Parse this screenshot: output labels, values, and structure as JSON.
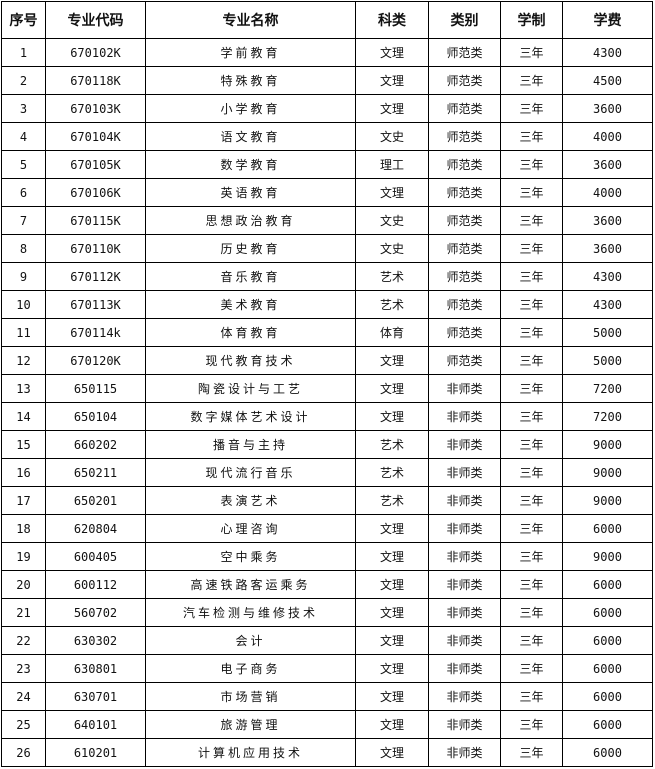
{
  "headers": [
    "序号",
    "专业代码",
    "专业名称",
    "科类",
    "类别",
    "学制",
    "学费"
  ],
  "rows": [
    [
      "1",
      "670102K",
      "学前教育",
      "文理",
      "师范类",
      "三年",
      "4300"
    ],
    [
      "2",
      "670118K",
      "特殊教育",
      "文理",
      "师范类",
      "三年",
      "4500"
    ],
    [
      "3",
      "670103K",
      "小学教育",
      "文理",
      "师范类",
      "三年",
      "3600"
    ],
    [
      "4",
      "670104K",
      "语文教育",
      "文史",
      "师范类",
      "三年",
      "4000"
    ],
    [
      "5",
      "670105K",
      "数学教育",
      "理工",
      "师范类",
      "三年",
      "3600"
    ],
    [
      "6",
      "670106K",
      "英语教育",
      "文理",
      "师范类",
      "三年",
      "4000"
    ],
    [
      "7",
      "670115K",
      "思想政治教育",
      "文史",
      "师范类",
      "三年",
      "3600"
    ],
    [
      "8",
      "670110K",
      "历史教育",
      "文史",
      "师范类",
      "三年",
      "3600"
    ],
    [
      "9",
      "670112K",
      "音乐教育",
      "艺术",
      "师范类",
      "三年",
      "4300"
    ],
    [
      "10",
      "670113K",
      "美术教育",
      "艺术",
      "师范类",
      "三年",
      "4300"
    ],
    [
      "11",
      "670114k",
      "体育教育",
      "体育",
      "师范类",
      "三年",
      "5000"
    ],
    [
      "12",
      "670120K",
      "现代教育技术",
      "文理",
      "师范类",
      "三年",
      "5000"
    ],
    [
      "13",
      "650115",
      "陶瓷设计与工艺",
      "文理",
      "非师类",
      "三年",
      "7200"
    ],
    [
      "14",
      "650104",
      "数字媒体艺术设计",
      "文理",
      "非师类",
      "三年",
      "7200"
    ],
    [
      "15",
      "660202",
      "播音与主持",
      "艺术",
      "非师类",
      "三年",
      "9000"
    ],
    [
      "16",
      "650211",
      "现代流行音乐",
      "艺术",
      "非师类",
      "三年",
      "9000"
    ],
    [
      "17",
      "650201",
      "表演艺术",
      "艺术",
      "非师类",
      "三年",
      "9000"
    ],
    [
      "18",
      "620804",
      "心理咨询",
      "文理",
      "非师类",
      "三年",
      "6000"
    ],
    [
      "19",
      "600405",
      "空中乘务",
      "文理",
      "非师类",
      "三年",
      "9000"
    ],
    [
      "20",
      "600112",
      "高速铁路客运乘务",
      "文理",
      "非师类",
      "三年",
      "6000"
    ],
    [
      "21",
      "560702",
      "汽车检测与维修技术",
      "文理",
      "非师类",
      "三年",
      "6000"
    ],
    [
      "22",
      "630302",
      "会计",
      "文理",
      "非师类",
      "三年",
      "6000"
    ],
    [
      "23",
      "630801",
      "电子商务",
      "文理",
      "非师类",
      "三年",
      "6000"
    ],
    [
      "24",
      "630701",
      "市场营销",
      "文理",
      "非师类",
      "三年",
      "6000"
    ],
    [
      "25",
      "640101",
      "旅游管理",
      "文理",
      "非师类",
      "三年",
      "6000"
    ],
    [
      "26",
      "610201",
      "计算机应用技术",
      "文理",
      "非师类",
      "三年",
      "6000"
    ]
  ]
}
